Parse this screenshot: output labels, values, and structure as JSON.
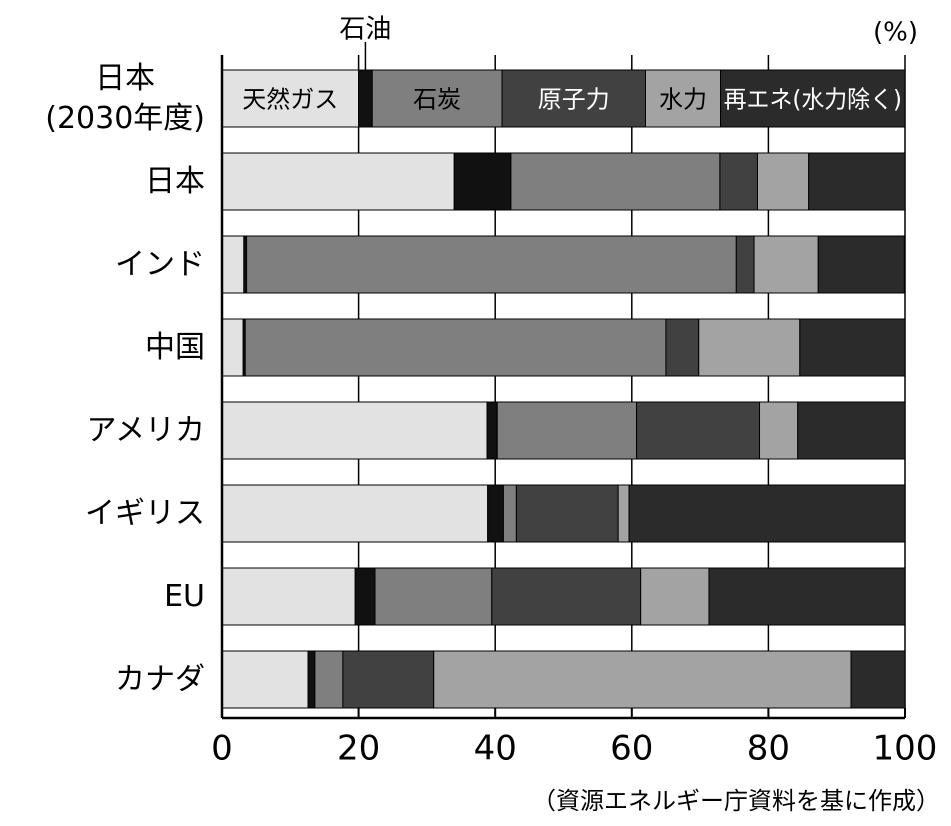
{
  "chart_data": {
    "type": "stacked-bar-horizontal",
    "x_unit_label": "(%)",
    "source": "（資源エネルギー庁資料を基に作成）",
    "categories": [
      "日本\n(2030年度)",
      "日本",
      "インド",
      "中国",
      "アメリカ",
      "イギリス",
      "EU",
      "カナダ"
    ],
    "series": [
      {
        "name": "天然ガス",
        "color": "#e2e2e2",
        "values": [
          20,
          34,
          3.2,
          3.1,
          38.8,
          38.9,
          19.5,
          12.6
        ]
      },
      {
        "name": "石油",
        "color": "#111111",
        "values": [
          2,
          8.3,
          0.4,
          0.3,
          1.5,
          2.3,
          2.9,
          1.0
        ]
      },
      {
        "name": "石炭",
        "color": "#7f7f7f",
        "values": [
          19,
          30.6,
          71.7,
          61.6,
          20.4,
          1.9,
          17.1,
          4.1
        ]
      },
      {
        "name": "原子力",
        "color": "#414141",
        "values": [
          21,
          5.5,
          2.6,
          4.8,
          18.0,
          14.9,
          21.8,
          13.3
        ]
      },
      {
        "name": "水力",
        "color": "#a3a3a3",
        "values": [
          11,
          7.5,
          9.4,
          14.8,
          5.6,
          1.6,
          10.0,
          61.1
        ]
      },
      {
        "name": "再エネ(水力除く)",
        "color": "#2b2b2b",
        "values": [
          27,
          14.1,
          12.6,
          15.4,
          15.7,
          40.4,
          28.7,
          7.9
        ]
      }
    ],
    "xlim": [
      0,
      100
    ],
    "xticks": [
      0,
      20,
      40,
      60,
      80,
      100
    ],
    "grid": true
  }
}
